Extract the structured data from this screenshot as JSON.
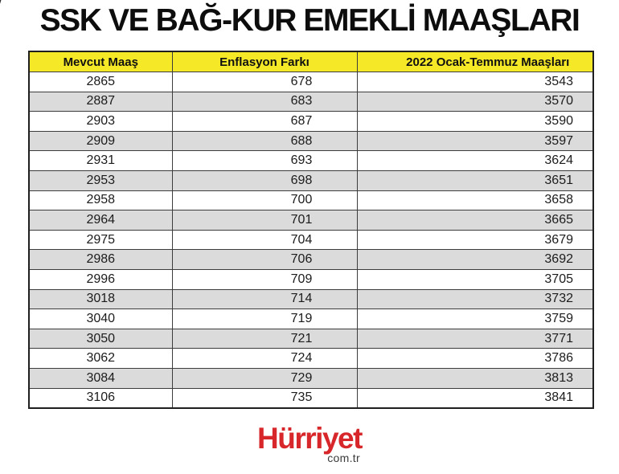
{
  "title": "SSK VE BAĞ-KUR EMEKLİ MAAŞLARI",
  "chart_data": {
    "type": "table",
    "title": "SSK VE BAĞ-KUR EMEKLİ MAAŞLARI",
    "columns": [
      "Mevcut Maaş",
      "Enflasyon Farkı",
      "2022 Ocak-Temmuz Maaşları"
    ],
    "rows": [
      [
        2865,
        678,
        3543
      ],
      [
        2887,
        683,
        3570
      ],
      [
        2903,
        687,
        3590
      ],
      [
        2909,
        688,
        3597
      ],
      [
        2931,
        693,
        3624
      ],
      [
        2953,
        698,
        3651
      ],
      [
        2958,
        700,
        3658
      ],
      [
        2964,
        701,
        3665
      ],
      [
        2975,
        704,
        3679
      ],
      [
        2986,
        706,
        3692
      ],
      [
        2996,
        709,
        3705
      ],
      [
        3018,
        714,
        3732
      ],
      [
        3040,
        719,
        3759
      ],
      [
        3050,
        721,
        3771
      ],
      [
        3062,
        724,
        3786
      ],
      [
        3084,
        729,
        3813
      ],
      [
        3106,
        735,
        3841
      ]
    ]
  },
  "footer": {
    "logo_text": "Hürriyet",
    "logo_domain": "com.tr"
  },
  "colors": {
    "header_bg": "#f5e826",
    "row_alt_bg": "#dbdbdb",
    "border": "#3c3c3c",
    "logo_red": "#d8272a"
  }
}
